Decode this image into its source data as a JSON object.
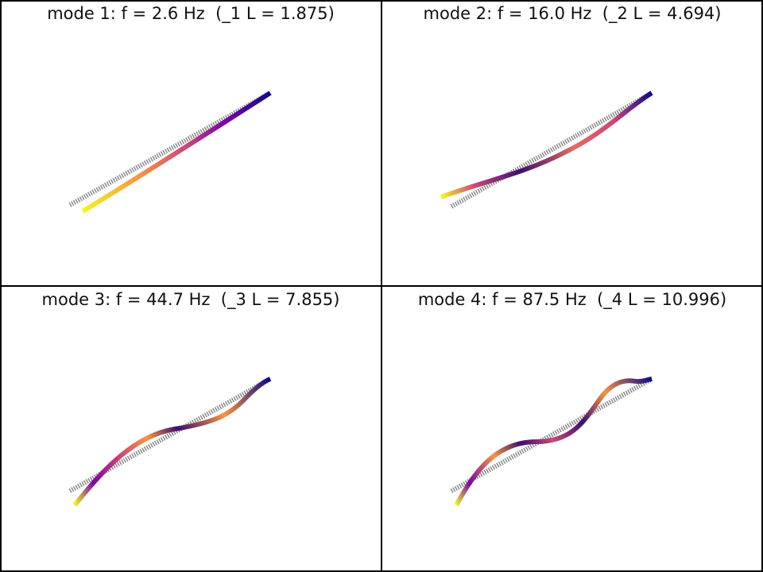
{
  "panels": [
    {
      "title": "mode 1: f = 2.6 Hz  (_1 L = 1.875)"
    },
    {
      "title": "mode 2: f = 16.0 Hz  (_2 L = 4.694)"
    },
    {
      "title": "mode 3: f = 44.7 Hz  (_3 L = 7.855)"
    },
    {
      "title": "mode 4: f = 87.5 Hz  (_4 L = 10.996)"
    }
  ]
}
